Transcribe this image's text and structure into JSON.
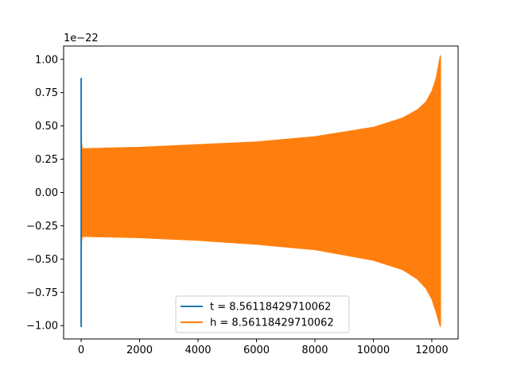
{
  "chart_data": {
    "type": "line",
    "title": "",
    "xlabel": "",
    "ylabel": "",
    "y_offset_label": "1e−22",
    "xlim": [
      -600,
      12900
    ],
    "ylim": [
      -1.1,
      1.1
    ],
    "x_ticks": [
      0,
      2000,
      4000,
      6000,
      8000,
      10000,
      12000
    ],
    "x_tick_labels": [
      "0",
      "2000",
      "4000",
      "6000",
      "8000",
      "10000",
      "12000"
    ],
    "y_ticks": [
      1.0,
      0.75,
      0.5,
      0.25,
      0.0,
      -0.25,
      -0.5,
      -0.75,
      -1.0
    ],
    "y_tick_labels": [
      "1.00",
      "0.75",
      "0.50",
      "0.25",
      "0.00",
      "−0.25",
      "−0.50",
      "−0.75",
      "−1.00"
    ],
    "legend_position": "lower center",
    "series": [
      {
        "name": "t = 8.56118429710062",
        "color": "#1f77b4",
        "x_range": [
          0,
          2
        ],
        "y_min": -1.01,
        "y_max": 0.86
      },
      {
        "name": "h = 8.56118429710062",
        "color": "#ff7f0e",
        "envelope": {
          "x": [
            0,
            40,
            2000,
            4000,
            6000,
            8000,
            10000,
            11000,
            11500,
            11800,
            12000,
            12150,
            12250,
            12290,
            12300
          ],
          "upper": [
            0.4,
            0.33,
            0.34,
            0.36,
            0.38,
            0.42,
            0.49,
            0.56,
            0.62,
            0.68,
            0.76,
            0.86,
            0.98,
            1.03,
            1.02
          ],
          "lower": [
            -0.4,
            -0.33,
            -0.34,
            -0.36,
            -0.39,
            -0.43,
            -0.51,
            -0.58,
            -0.65,
            -0.72,
            -0.8,
            -0.9,
            -0.98,
            -1.01,
            -0.99
          ]
        }
      }
    ]
  }
}
